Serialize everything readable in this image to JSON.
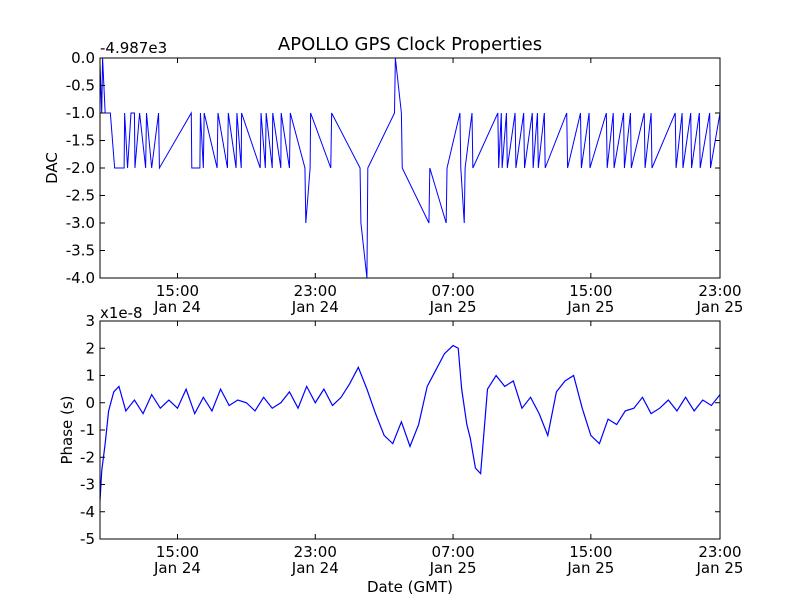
{
  "title": "APOLLO GPS Clock Properties",
  "colors": {
    "series": "#0000ff",
    "axes": "#000000",
    "background": "#ffffff"
  },
  "chart_data": [
    {
      "type": "line",
      "name": "dac-panel",
      "ylabel": "DAC",
      "y_offset_label": "-4.987e3",
      "ylim": [
        -4.0,
        0.0
      ],
      "ytick_values": [
        -4.0,
        -3.5,
        -3.0,
        -2.5,
        -2.0,
        -1.5,
        -1.0,
        -0.5,
        0.0
      ],
      "ytick_labels": [
        "-4.0",
        "-3.5",
        "-3.0",
        "-2.5",
        "-2.0",
        "-1.5",
        "-1.0",
        "-0.5",
        "0.0"
      ],
      "xlim": [
        10.5,
        46.5
      ],
      "xtick_values": [
        15,
        23,
        31,
        39,
        47
      ],
      "xtick_labels": [
        [
          "15:00",
          "Jan 24"
        ],
        [
          "23:00",
          "Jan 24"
        ],
        [
          "07:00",
          "Jan 25"
        ],
        [
          "15:00",
          "Jan 25"
        ],
        [
          "23:00",
          "Jan 25"
        ]
      ],
      "grid": false,
      "x": [
        10.5,
        10.6,
        10.65,
        10.8,
        10.85,
        11.1,
        11.35,
        11.9,
        11.93,
        12.1,
        12.3,
        12.5,
        12.53,
        12.8,
        13.15,
        13.2,
        13.5,
        13.9,
        13.95,
        15.8,
        15.83,
        16.3,
        16.33,
        16.5,
        16.55,
        17.3,
        17.35,
        17.9,
        17.95,
        18.4,
        18.45,
        18.7,
        18.72,
        19.8,
        19.85,
        20.1,
        20.15,
        20.5,
        20.53,
        21.0,
        21.02,
        21.5,
        21.55,
        22.4,
        22.45,
        22.7,
        22.73,
        23.9,
        23.95,
        25.6,
        25.65,
        26.0,
        26.05,
        27.6,
        27.65,
        28.0,
        28.05,
        29.6,
        29.65,
        30.6,
        30.65,
        31.4,
        31.45,
        31.65,
        31.7,
        32.1,
        32.15,
        33.6,
        33.65,
        33.8,
        33.85,
        34.1,
        34.15,
        34.6,
        34.65,
        35.1,
        35.15,
        35.6,
        35.65,
        35.9,
        35.95,
        36.3,
        36.35,
        37.6,
        37.65,
        38.4,
        38.45,
        38.9,
        38.95,
        39.9,
        39.95,
        40.3,
        40.35,
        40.9,
        40.95,
        41.3,
        41.35,
        42.1,
        42.15,
        42.5,
        42.55,
        43.9,
        43.95,
        44.3,
        44.35,
        44.8,
        44.85,
        45.3,
        45.35,
        45.9,
        45.95,
        46.5
      ],
      "y": [
        -0.1,
        -1.0,
        0.0,
        -1.0,
        -1.0,
        -1.0,
        -2.0,
        -2.0,
        -1.0,
        -2.0,
        -1.0,
        -1.0,
        -2.0,
        -1.0,
        -2.0,
        -1.0,
        -2.0,
        -1.0,
        -2.0,
        -1.0,
        -2.0,
        -2.0,
        -1.0,
        -2.0,
        -1.0,
        -2.0,
        -1.0,
        -2.0,
        -1.0,
        -2.0,
        -1.0,
        -2.0,
        -1.0,
        -2.0,
        -1.0,
        -2.0,
        -1.0,
        -2.0,
        -1.0,
        -2.0,
        -1.0,
        -2.0,
        -1.0,
        -2.0,
        -3.0,
        -2.0,
        -1.0,
        -2.0,
        -1.0,
        -2.0,
        -3.0,
        -4.0,
        -2.0,
        -1.0,
        -0.0,
        -1.0,
        -2.0,
        -3.0,
        -2.0,
        -3.0,
        -2.0,
        -1.0,
        -2.0,
        -3.0,
        -2.0,
        -1.0,
        -2.0,
        -1.0,
        -2.0,
        -1.0,
        -2.0,
        -1.0,
        -2.0,
        -1.0,
        -2.0,
        -1.0,
        -2.0,
        -1.0,
        -2.0,
        -1.0,
        -2.0,
        -1.0,
        -2.0,
        -1.0,
        -2.0,
        -1.0,
        -2.0,
        -1.0,
        -2.0,
        -1.0,
        -2.0,
        -1.0,
        -2.0,
        -1.0,
        -2.0,
        -1.0,
        -2.0,
        -1.0,
        -2.0,
        -1.0,
        -2.0,
        -1.0,
        -2.0,
        -1.0,
        -2.0,
        -1.0,
        -2.0,
        -1.0,
        -2.0,
        -1.0,
        -2.0,
        -1.0
      ]
    },
    {
      "type": "line",
      "name": "phase-panel",
      "ylabel": "Phase (s)",
      "xlabel": "Date (GMT)",
      "y_offset_label": "x1e-8",
      "ylim": [
        -5,
        3
      ],
      "ytick_values": [
        -5,
        -4,
        -3,
        -2,
        -1,
        0,
        1,
        2,
        3
      ],
      "ytick_labels": [
        "-5",
        "-4",
        "-3",
        "-2",
        "-1",
        "0",
        "1",
        "2",
        "3"
      ],
      "xlim": [
        10.5,
        46.5
      ],
      "xtick_values": [
        15,
        23,
        31,
        39,
        47
      ],
      "xtick_labels": [
        [
          "15:00",
          "Jan 24"
        ],
        [
          "23:00",
          "Jan 24"
        ],
        [
          "07:00",
          "Jan 25"
        ],
        [
          "15:00",
          "Jan 25"
        ],
        [
          "23:00",
          "Jan 25"
        ]
      ],
      "grid": false,
      "x": [
        10.5,
        10.6,
        10.8,
        11.0,
        11.3,
        11.6,
        12.0,
        12.5,
        13.0,
        13.5,
        14.0,
        14.5,
        15.0,
        15.5,
        16.0,
        16.5,
        17.0,
        17.5,
        18.0,
        18.5,
        19.0,
        19.5,
        20.0,
        20.5,
        21.0,
        21.5,
        22.0,
        22.5,
        23.0,
        23.5,
        24.0,
        24.5,
        25.0,
        25.5,
        26.0,
        26.5,
        27.0,
        27.5,
        28.0,
        28.5,
        29.0,
        29.5,
        30.0,
        30.5,
        31.0,
        31.3,
        31.5,
        31.8,
        32.0,
        32.3,
        32.6,
        33.0,
        33.5,
        34.0,
        34.5,
        35.0,
        35.5,
        36.0,
        36.5,
        37.0,
        37.5,
        38.0,
        38.5,
        39.0,
        39.5,
        40.0,
        40.5,
        41.0,
        41.5,
        42.0,
        42.5,
        43.0,
        43.5,
        44.0,
        44.5,
        45.0,
        45.5,
        46.0,
        46.5
      ],
      "y": [
        -3.6,
        -2.5,
        -1.5,
        -0.3,
        0.4,
        0.6,
        -0.3,
        0.1,
        -0.4,
        0.3,
        -0.2,
        0.1,
        -0.2,
        0.5,
        -0.4,
        0.2,
        -0.3,
        0.5,
        -0.1,
        0.1,
        0.0,
        -0.3,
        0.2,
        -0.2,
        0.0,
        0.4,
        -0.2,
        0.6,
        0.0,
        0.5,
        -0.1,
        0.2,
        0.7,
        1.3,
        0.5,
        -0.4,
        -1.2,
        -1.5,
        -0.7,
        -1.6,
        -0.8,
        0.6,
        1.2,
        1.8,
        2.1,
        2.0,
        0.5,
        -0.8,
        -1.3,
        -2.4,
        -2.6,
        0.5,
        1.0,
        0.6,
        0.8,
        -0.2,
        0.2,
        -0.4,
        -1.2,
        0.4,
        0.8,
        1.0,
        -0.2,
        -1.2,
        -1.5,
        -0.6,
        -0.8,
        -0.3,
        -0.2,
        0.2,
        -0.4,
        -0.2,
        0.1,
        -0.3,
        0.2,
        -0.3,
        0.1,
        -0.1,
        0.3
      ]
    }
  ]
}
